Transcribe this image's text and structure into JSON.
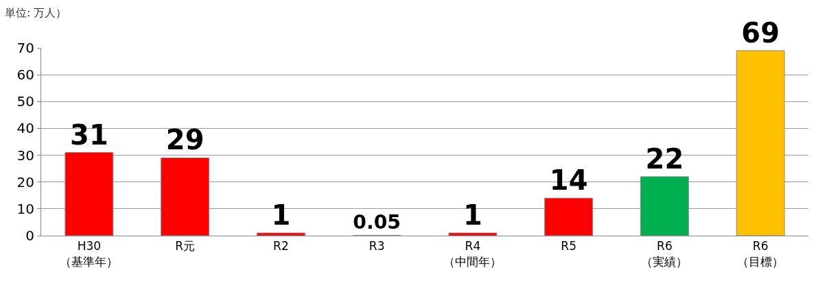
{
  "chart_data": {
    "type": "bar",
    "annotations": [
      "単位: 万人）"
    ],
    "categories": [
      "H30\n（基準年）",
      "R元",
      "R2",
      "R3",
      "R4\n（中間年）",
      "R5",
      "R6\n（実績）",
      "R6\n（目標）"
    ],
    "values": [
      31,
      29,
      1,
      0.05,
      1,
      14,
      22,
      69
    ],
    "colors": [
      "#ff0000",
      "#ff0000",
      "#ff0000",
      "#ff0000",
      "#ff0000",
      "#ff0000",
      "#00b050",
      "#ffc000"
    ],
    "ylim": [
      0,
      70
    ],
    "yticks": [
      0,
      10,
      20,
      30,
      40,
      50,
      60,
      70
    ],
    "grid": "y",
    "data_labels": true,
    "legend": false
  }
}
